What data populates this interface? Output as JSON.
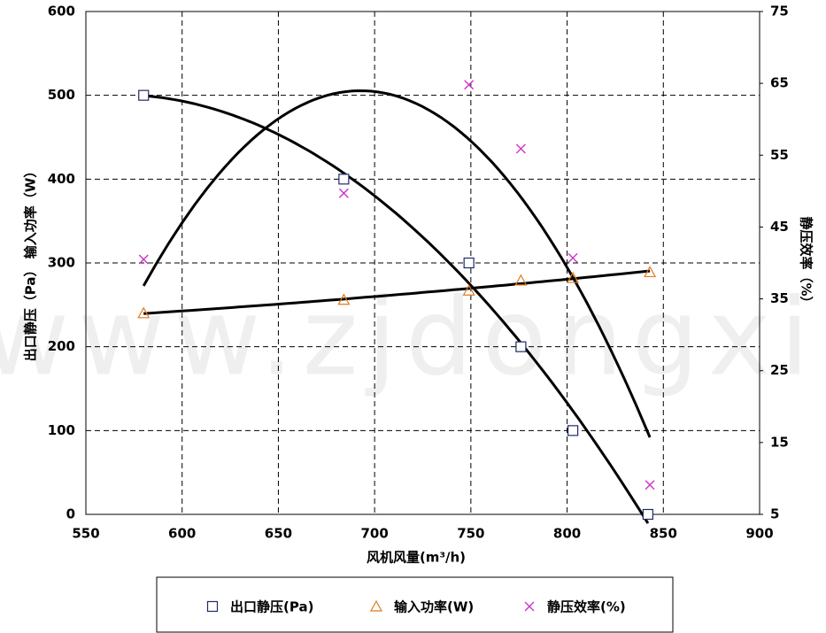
{
  "chart_data": {
    "type": "scatter",
    "watermark": "www.zjdongxin.c",
    "x_label": "风机风量(m³/h)",
    "y_label": "出口静压（Pa） 输入功率（W）",
    "y2_label": "静压效率（%）",
    "xlim": [
      550,
      900
    ],
    "xticks": [
      550,
      600,
      650,
      700,
      750,
      800,
      850,
      900
    ],
    "ylim": [
      0,
      600
    ],
    "yticks": [
      0,
      100,
      200,
      300,
      400,
      500,
      600
    ],
    "y2lim": [
      5,
      75
    ],
    "y2ticks": [
      5,
      15,
      25,
      35,
      45,
      55,
      65,
      75
    ],
    "grid": true,
    "legend": "bottom",
    "series": [
      {
        "name": "出口静压(Pa)",
        "color": "#1f2a6b",
        "marker": "square",
        "x": [
          580,
          684,
          749,
          776,
          803,
          842
        ],
        "values": [
          500,
          400,
          300,
          200,
          100,
          0
        ]
      },
      {
        "name": "输入功率(W)",
        "color": "#e07b20",
        "marker": "triangle",
        "x": [
          580,
          684,
          749,
          776,
          803,
          843
        ],
        "values": [
          240,
          256,
          267,
          279,
          282,
          289
        ]
      },
      {
        "name": "静压效率(%)",
        "color": "#cc33cc",
        "marker": "x",
        "axis": "y2",
        "x": [
          580,
          684,
          749,
          776,
          803,
          843
        ],
        "values": [
          40.5,
          49.7,
          64.8,
          55.9,
          40.7,
          9.1
        ]
      }
    ]
  }
}
